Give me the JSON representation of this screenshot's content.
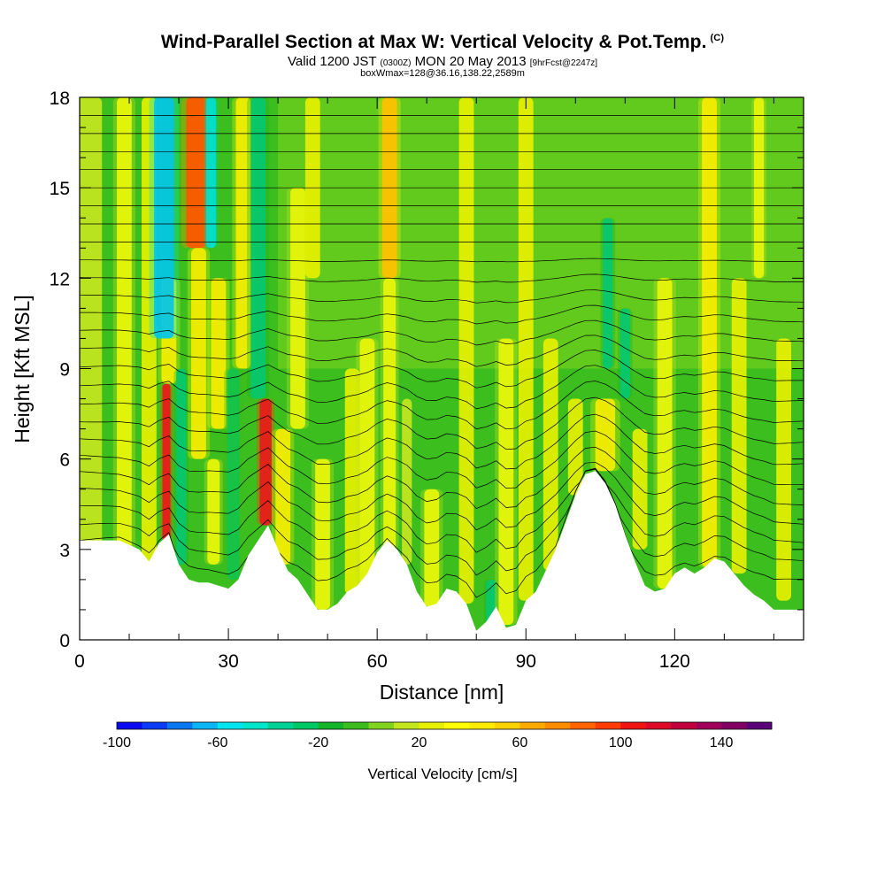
{
  "title": "Wind-Parallel Section at Max W: Vertical Velocity & Pot.Temp.",
  "copyright": "(C)",
  "subtitle_a": "Valid 1200 JST",
  "subtitle_b": "(0300Z)",
  "subtitle_c": "MON 20 May 2013",
  "subtitle_d": "[9hrFcst@2247z]",
  "subtitle2": "boxWmax=128@36.16,138.22,2589m",
  "chart_data": {
    "type": "heatmap",
    "xlabel": "Distance [nm]",
    "ylabel": "Height [Kft MSL]",
    "xlim": [
      0,
      146
    ],
    "ylim": [
      0,
      18
    ],
    "xticks": [
      0,
      30,
      60,
      90,
      120
    ],
    "yticks": [
      0,
      3,
      6,
      9,
      12,
      15,
      18
    ],
    "colorbar": {
      "label": "Vertical Velocity [cm/s]",
      "range": [
        -100,
        160
      ],
      "step": 10,
      "tick_values": [
        -100,
        -60,
        -20,
        20,
        60,
        100,
        140
      ],
      "tick_labels": [
        "-100",
        "-60",
        "-20",
        "20",
        "60",
        "100",
        "140"
      ],
      "colors": [
        "#0a0af0",
        "#0a3cf5",
        "#0a78f0",
        "#0ab4f5",
        "#00e6f0",
        "#00e6c8",
        "#00d296",
        "#00c864",
        "#14b428",
        "#3cbe1e",
        "#82d21e",
        "#c3e61e",
        "#e6f000",
        "#ffff00",
        "#ffeb00",
        "#ffd200",
        "#ffaa00",
        "#ff8c00",
        "#ff6400",
        "#ff3c00",
        "#f01414",
        "#dc0a28",
        "#c0003c",
        "#a0005a",
        "#820064",
        "#5a0078"
      ]
    },
    "terrain_profile": {
      "distance": [
        0,
        8,
        12,
        14,
        16,
        18,
        20,
        22,
        24,
        26,
        28,
        30,
        32,
        34,
        36,
        38,
        40,
        42,
        44,
        46,
        48,
        50,
        52,
        54,
        56,
        58,
        60,
        62,
        64,
        66,
        68,
        70,
        72,
        74,
        76,
        78,
        80,
        82,
        84,
        86,
        88,
        90,
        92,
        94,
        96,
        98,
        100,
        102,
        104,
        106,
        108,
        110,
        112,
        114,
        116,
        118,
        120,
        122,
        124,
        126,
        128,
        130,
        132,
        134,
        136,
        138,
        140,
        146
      ],
      "height": [
        3.3,
        3.3,
        3.0,
        2.6,
        3.2,
        3.5,
        2.5,
        2.0,
        1.9,
        1.9,
        1.8,
        1.7,
        2.0,
        2.8,
        3.3,
        3.8,
        3.0,
        2.3,
        2.0,
        1.5,
        1.0,
        1.0,
        1.2,
        1.6,
        1.8,
        2.2,
        2.9,
        3.3,
        3.0,
        2.5,
        1.6,
        1.1,
        1.2,
        1.7,
        1.6,
        1.2,
        0.3,
        0.6,
        1.1,
        0.4,
        0.5,
        1.3,
        1.6,
        2.3,
        3.0,
        3.9,
        4.8,
        5.5,
        5.6,
        5.2,
        4.5,
        3.5,
        2.6,
        1.8,
        1.6,
        1.7,
        2.2,
        2.4,
        2.2,
        2.4,
        2.7,
        2.6,
        2.2,
        1.8,
        1.5,
        1.3,
        1.0,
        1.0
      ]
    },
    "vertical_velocity_columns": [
      {
        "x": 2,
        "w": 5,
        "value": 10,
        "z0": 0,
        "z1": 18
      },
      {
        "x": 9,
        "w": 3,
        "value": 35,
        "z0": 0,
        "z1": 18
      },
      {
        "x": 14,
        "w": 3,
        "value": 20,
        "z0": 0,
        "z1": 18
      },
      {
        "x": 17.5,
        "w": 1.6,
        "value": 110,
        "z0": 3.3,
        "z1": 8.5
      },
      {
        "x": 18,
        "w": 3,
        "value": 40,
        "z0": 8.5,
        "z1": 12
      },
      {
        "x": 17,
        "w": 4,
        "value": -65,
        "z0": 10,
        "z1": 18
      },
      {
        "x": 20.5,
        "w": 2,
        "value": -40,
        "z0": 2.5,
        "z1": 9
      },
      {
        "x": 23.5,
        "w": 4,
        "value": 90,
        "z0": 13,
        "z1": 18
      },
      {
        "x": 24,
        "w": 3,
        "value": 40,
        "z0": 6,
        "z1": 13
      },
      {
        "x": 26.5,
        "w": 2,
        "value": -60,
        "z0": 13,
        "z1": 18
      },
      {
        "x": 27,
        "w": 2.5,
        "value": 30,
        "z0": 2.5,
        "z1": 6
      },
      {
        "x": 28,
        "w": 3,
        "value": 40,
        "z0": 7,
        "z1": 12
      },
      {
        "x": 31,
        "w": 2.5,
        "value": -30,
        "z0": 2,
        "z1": 9
      },
      {
        "x": 33,
        "w": 3,
        "value": 40,
        "z0": 9,
        "z1": 18
      },
      {
        "x": 37.5,
        "w": 2.4,
        "value": 115,
        "z0": 3.8,
        "z1": 8
      },
      {
        "x": 36,
        "w": 3,
        "value": -40,
        "z0": 8,
        "z1": 18
      },
      {
        "x": 41,
        "w": 3,
        "value": 45,
        "z0": 2.5,
        "z1": 7
      },
      {
        "x": 44,
        "w": 3,
        "value": 30,
        "z0": 7,
        "z1": 15
      },
      {
        "x": 47,
        "w": 3,
        "value": 25,
        "z0": 12,
        "z1": 18
      },
      {
        "x": 49,
        "w": 3,
        "value": 30,
        "z0": 1,
        "z1": 6
      },
      {
        "x": 55,
        "w": 3,
        "value": 25,
        "z0": 1.5,
        "z1": 9
      },
      {
        "x": 58,
        "w": 3,
        "value": 30,
        "z0": 1.8,
        "z1": 10
      },
      {
        "x": 62.5,
        "w": 3,
        "value": 60,
        "z0": 12,
        "z1": 18
      },
      {
        "x": 62.5,
        "w": 2.5,
        "value": 30,
        "z0": 3,
        "z1": 12
      },
      {
        "x": 66,
        "w": 2,
        "value": 10,
        "z0": 2.5,
        "z1": 8
      },
      {
        "x": 71,
        "w": 3,
        "value": 30,
        "z0": 1.1,
        "z1": 5
      },
      {
        "x": 78,
        "w": 3,
        "value": 25,
        "z0": 1.2,
        "z1": 18
      },
      {
        "x": 83,
        "w": 2,
        "value": -40,
        "z0": 0.5,
        "z1": 2
      },
      {
        "x": 86,
        "w": 3,
        "value": 30,
        "z0": 0.5,
        "z1": 10
      },
      {
        "x": 90,
        "w": 3,
        "value": 25,
        "z0": 1.3,
        "z1": 18
      },
      {
        "x": 95,
        "w": 3,
        "value": 20,
        "z0": 2.3,
        "z1": 10
      },
      {
        "x": 100,
        "w": 3,
        "value": 25,
        "z0": 4.8,
        "z1": 8
      },
      {
        "x": 106,
        "w": 4,
        "value": 40,
        "z0": 5.6,
        "z1": 8
      },
      {
        "x": 106.5,
        "w": 2,
        "value": -40,
        "z0": 9,
        "z1": 14
      },
      {
        "x": 110,
        "w": 2,
        "value": -40,
        "z0": 8,
        "z1": 11
      },
      {
        "x": 113,
        "w": 3,
        "value": 25,
        "z0": 3,
        "z1": 7
      },
      {
        "x": 118,
        "w": 3,
        "value": 30,
        "z0": 1.7,
        "z1": 12
      },
      {
        "x": 127,
        "w": 3,
        "value": 40,
        "z0": 2.4,
        "z1": 18
      },
      {
        "x": 133,
        "w": 3,
        "value": 25,
        "z0": 2.2,
        "z1": 12
      },
      {
        "x": 137,
        "w": 2,
        "value": 30,
        "z0": 12,
        "z1": 18
      },
      {
        "x": 142,
        "w": 3,
        "value": 20,
        "z0": 1.3,
        "z1": 10
      }
    ],
    "isentropes_kft": [
      3.0,
      3.6,
      4.2,
      4.8,
      5.4,
      6.0,
      6.6,
      7.2,
      7.8,
      8.4,
      9.0,
      9.6,
      10.2,
      10.8,
      11.4,
      12.0,
      12.6,
      13.2,
      13.8,
      14.4,
      15.0,
      15.6,
      16.2,
      16.8,
      17.4
    ]
  }
}
